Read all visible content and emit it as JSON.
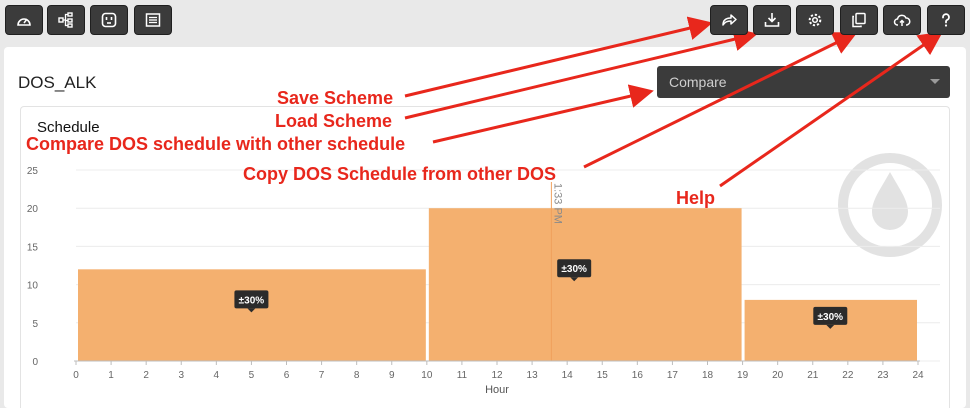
{
  "toolbar_left": [
    {
      "name": "dashboard-button",
      "icon": "gauge-icon"
    },
    {
      "name": "hierarchy-button",
      "icon": "sitemap-icon"
    },
    {
      "name": "outlet-button",
      "icon": "outlet-icon"
    },
    {
      "name": "list-button",
      "icon": "list-icon"
    }
  ],
  "toolbar_right": [
    {
      "name": "save-scheme-button",
      "icon": "share-icon"
    },
    {
      "name": "load-scheme-button",
      "icon": "download-icon"
    },
    {
      "name": "settings-button",
      "icon": "gear-icon"
    },
    {
      "name": "copy-schedule-button",
      "icon": "copy-icon"
    },
    {
      "name": "upload-button",
      "icon": "cloud-upload-icon"
    },
    {
      "name": "help-button",
      "icon": "question-icon"
    }
  ],
  "scheme_name": "DOS_ALK",
  "compare_select": {
    "value": "Compare"
  },
  "chart_title": "Schedule",
  "annotations": {
    "save": "Save Scheme",
    "load": "Load Scheme",
    "compare": "Compare DOS schedule with other schedule",
    "copy": "Copy DOS Schedule from other DOS",
    "help": "Help"
  },
  "annotation_color": "#e8271c",
  "chart_data": {
    "type": "bar",
    "title": "Schedule",
    "xlabel": "Hour",
    "ylabel": "",
    "xlim": [
      0,
      24
    ],
    "ylim": [
      0,
      25
    ],
    "xticks": [
      0,
      1,
      2,
      3,
      4,
      5,
      6,
      7,
      8,
      9,
      10,
      11,
      12,
      13,
      14,
      15,
      16,
      17,
      18,
      19,
      20,
      21,
      22,
      23,
      24
    ],
    "yticks": [
      0,
      5,
      10,
      15,
      20,
      25
    ],
    "grid": true,
    "bar_color": "#f4b06f",
    "bars": [
      {
        "start": 0,
        "end": 10,
        "value": 12,
        "label": "±30%"
      },
      {
        "start": 10,
        "end": 19,
        "value": 20,
        "label": "±30%"
      },
      {
        "start": 19,
        "end": 24,
        "value": 8,
        "label": "±30%"
      }
    ],
    "now_marker": {
      "x": 13.55,
      "label": "1:33 PM"
    }
  }
}
